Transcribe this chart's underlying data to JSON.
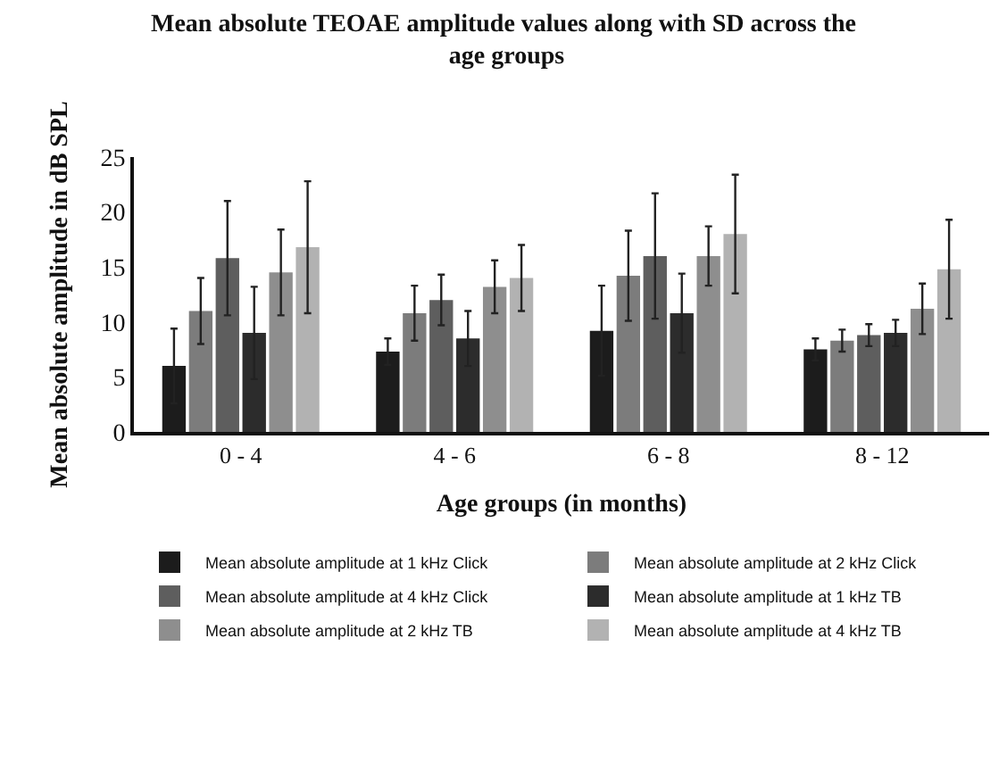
{
  "chart_data": {
    "type": "bar",
    "title": "Mean absolute TEOAE amplitude values along with SD across the age groups",
    "xlabel": "Age groups (in months)",
    "ylabel": "Mean absolute amplitude in dB SPL",
    "categories": [
      "0 - 4",
      "4 - 6",
      "6 - 8",
      "8 - 12"
    ],
    "series": [
      {
        "name": "Mean absolute amplitude at 1 kHz Click",
        "color": "#1c1c1c",
        "values": [
          6,
          7.3,
          9.2,
          7.5
        ],
        "errors": [
          3.4,
          1.2,
          4.1,
          1
        ]
      },
      {
        "name": "Mean absolute amplitude at 2 kHz Click",
        "color": "#7c7c7c",
        "values": [
          11,
          10.8,
          14.2,
          8.3
        ],
        "errors": [
          3,
          2.5,
          4.1,
          1
        ]
      },
      {
        "name": "Mean absolute amplitude at 4 kHz Click",
        "color": "#5e5e5e",
        "values": [
          15.8,
          12,
          16,
          8.8
        ],
        "errors": [
          5.2,
          2.3,
          5.7,
          1
        ]
      },
      {
        "name": "Mean absolute amplitude at 1 kHz TB",
        "color": "#2c2c2c",
        "values": [
          9,
          8.5,
          10.8,
          9
        ],
        "errors": [
          4.2,
          2.5,
          3.6,
          1.2
        ]
      },
      {
        "name": "Mean absolute amplitude at 2 kHz TB",
        "color": "#8e8e8e",
        "values": [
          14.5,
          13.2,
          16,
          11.2
        ],
        "errors": [
          3.9,
          2.4,
          2.7,
          2.3
        ]
      },
      {
        "name": "Mean absolute amplitude at 4 kHz TB",
        "color": "#b2b2b2",
        "values": [
          16.8,
          14,
          18,
          14.8
        ],
        "errors": [
          6,
          3,
          5.4,
          4.5
        ]
      }
    ],
    "ylim": [
      0,
      25
    ],
    "yticks": [
      0,
      5,
      10,
      15,
      20,
      25
    ],
    "legend": "bottom"
  }
}
